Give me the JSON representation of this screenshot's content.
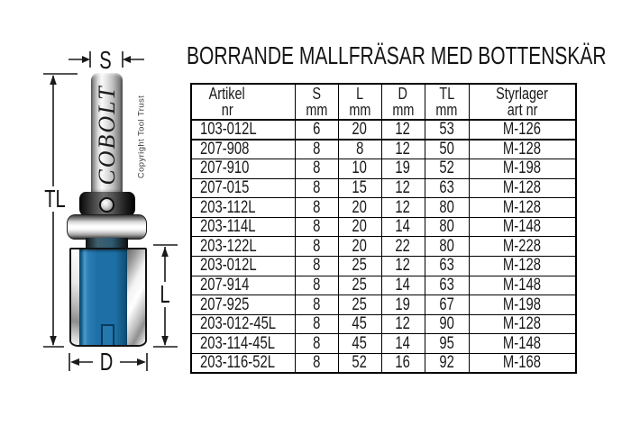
{
  "title": "BORRANDE MALLFRÄSAR MED BOTTENSKÄR",
  "diagram": {
    "brand_text": "COBOLT",
    "copyright_text": "Copyright Tool Trust",
    "dim_s": "S",
    "dim_tl": "TL",
    "dim_l": "L",
    "dim_d": "D",
    "cutter_color": "#1d6fa5"
  },
  "table": {
    "headers": [
      {
        "line1": "Artikel",
        "line2": "nr"
      },
      {
        "line1": "S",
        "line2": "mm"
      },
      {
        "line1": "L",
        "line2": "mm"
      },
      {
        "line1": "D",
        "line2": "mm"
      },
      {
        "line1": "TL",
        "line2": "mm"
      },
      {
        "line1": "Styrlager",
        "line2": "art nr"
      }
    ],
    "rows": [
      [
        "103-012L",
        "6",
        "20",
        "12",
        "53",
        "M-126"
      ],
      [
        "207-908",
        "8",
        "8",
        "12",
        "50",
        "M-128"
      ],
      [
        "207-910",
        "8",
        "10",
        "19",
        "52",
        "M-198"
      ],
      [
        "207-015",
        "8",
        "15",
        "12",
        "63",
        "M-128"
      ],
      [
        "203-112L",
        "8",
        "20",
        "12",
        "80",
        "M-128"
      ],
      [
        "203-114L",
        "8",
        "20",
        "14",
        "80",
        "M-148"
      ],
      [
        "203-122L",
        "8",
        "20",
        "22",
        "80",
        "M-228"
      ],
      [
        "203-012L",
        "8",
        "25",
        "12",
        "63",
        "M-128"
      ],
      [
        "207-914",
        "8",
        "25",
        "14",
        "63",
        "M-148"
      ],
      [
        "207-925",
        "8",
        "25",
        "19",
        "67",
        "M-198"
      ],
      [
        "203-012-45L",
        "8",
        "45",
        "12",
        "90",
        "M-128"
      ],
      [
        "203-114-45L",
        "8",
        "45",
        "14",
        "95",
        "M-148"
      ],
      [
        "203-116-52L",
        "8",
        "52",
        "16",
        "92",
        "M-168"
      ]
    ]
  }
}
